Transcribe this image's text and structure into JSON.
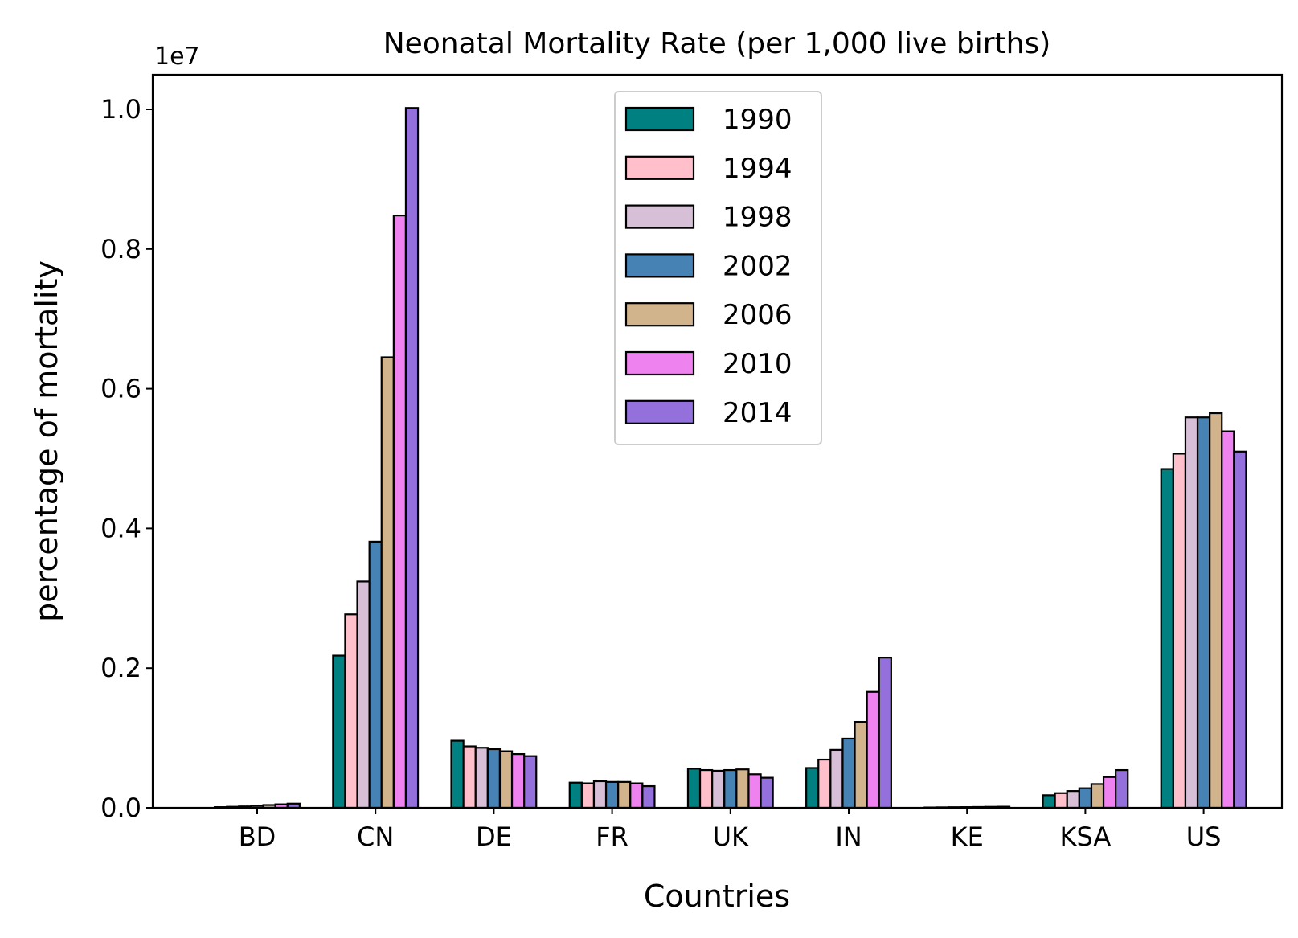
{
  "chart_data": {
    "type": "bar",
    "title": "Neonatal Mortality Rate (per 1,000 live births)",
    "xlabel": "Countries",
    "ylabel": "percentage of mortality",
    "y_multiplier_label": "1e7",
    "y_scale": 10000000,
    "ylim": [
      0,
      1.05
    ],
    "yticks": [
      0.0,
      0.2,
      0.4,
      0.6,
      0.8,
      1.0
    ],
    "ytick_labels": [
      "0.0",
      "0.2",
      "0.4",
      "0.6",
      "0.8",
      "1.0"
    ],
    "grid": false,
    "legend_position": "top-center",
    "categories": [
      "BD",
      "CN",
      "DE",
      "FR",
      "UK",
      "IN",
      "KE",
      "KSA",
      "US"
    ],
    "series": [
      {
        "name": "1990",
        "color": "#008080",
        "values": [
          0.001,
          0.218,
          0.096,
          0.036,
          0.056,
          0.057,
          0.0005,
          0.018,
          0.485
        ]
      },
      {
        "name": "1994",
        "color": "#FFC0CB",
        "values": [
          0.0015,
          0.277,
          0.088,
          0.035,
          0.054,
          0.069,
          0.0007,
          0.021,
          0.507
        ]
      },
      {
        "name": "1998",
        "color": "#D8BFD8",
        "values": [
          0.002,
          0.324,
          0.086,
          0.038,
          0.053,
          0.083,
          0.0009,
          0.024,
          0.559
        ]
      },
      {
        "name": "2002",
        "color": "#4682B4",
        "values": [
          0.003,
          0.381,
          0.084,
          0.037,
          0.054,
          0.099,
          0.001,
          0.028,
          0.559
        ]
      },
      {
        "name": "2006",
        "color": "#D2B48C",
        "values": [
          0.004,
          0.645,
          0.081,
          0.037,
          0.055,
          0.123,
          0.0012,
          0.034,
          0.565
        ]
      },
      {
        "name": "2010",
        "color": "#EE82EE",
        "values": [
          0.005,
          0.848,
          0.077,
          0.035,
          0.048,
          0.166,
          0.0014,
          0.044,
          0.539
        ]
      },
      {
        "name": "2014",
        "color": "#9370DB",
        "values": [
          0.006,
          1.002,
          0.074,
          0.031,
          0.043,
          0.215,
          0.0016,
          0.054,
          0.51
        ]
      }
    ]
  }
}
